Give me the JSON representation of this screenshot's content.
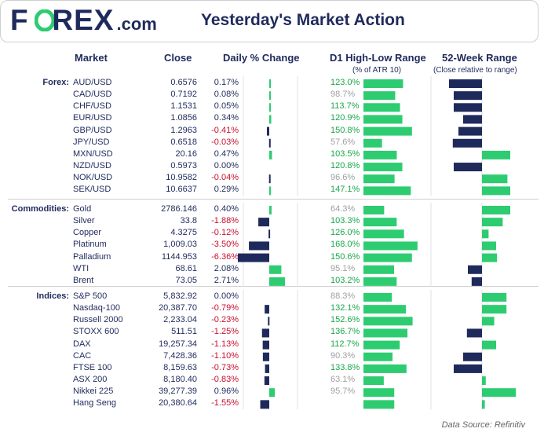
{
  "header": {
    "logo_text": "F",
    "logo_o": "O",
    "logo_rest": "REX",
    "logo_domain": ".com",
    "title": "Yesterday's Market Action"
  },
  "columns": {
    "market": "Market",
    "close": "Close",
    "daily": "Daily % Change",
    "range": "D1 High-Low Range",
    "range_sub": "(% of ATR 10)",
    "week52": "52-Week Range",
    "week52_sub": "(Close relative to range)"
  },
  "colors": {
    "navy": "#1f2a5c",
    "green": "#2ecc71",
    "neg_text": "#c8102e",
    "dim_text": "#a0a0a0",
    "range_text": "#1aa64a"
  },
  "footer": "Data Source: Refinitiv",
  "chart_data": {
    "type": "table",
    "sections": [
      {
        "label": "Forex:",
        "rows": [
          {
            "market": "AUD/USD",
            "close": "0.6576",
            "daily": "0.17%",
            "daily_v": 0.17,
            "range": "123.0%",
            "range_v": 123.0,
            "week52": 0.7
          },
          {
            "market": "CAD/USD",
            "close": "0.7192",
            "daily": "0.08%",
            "daily_v": 0.08,
            "range": "98.7%",
            "range_v": 98.7,
            "week52": 0.6
          },
          {
            "market": "CHF/USD",
            "close": "1.1531",
            "daily": "0.05%",
            "daily_v": 0.05,
            "range": "113.7%",
            "range_v": 113.7,
            "week52": 0.6
          },
          {
            "market": "EUR/USD",
            "close": "1.0856",
            "daily": "0.34%",
            "daily_v": 0.34,
            "range": "120.9%",
            "range_v": 120.9,
            "week52": 0.4
          },
          {
            "market": "GBP/USD",
            "close": "1.2963",
            "daily": "-0.41%",
            "daily_v": -0.41,
            "range": "150.8%",
            "range_v": 150.8,
            "week52": 0.5
          },
          {
            "market": "JPY/USD",
            "close": "0.6518",
            "daily": "-0.03%",
            "daily_v": -0.03,
            "range": "57.6%",
            "range_v": 57.6,
            "week52": 0.62
          },
          {
            "market": "MXN/USD",
            "close": "20.16",
            "daily": "0.47%",
            "daily_v": 0.47,
            "range": "103.5%",
            "range_v": 103.5,
            "week52": -0.6
          },
          {
            "market": "NZD/USD",
            "close": "0.5973",
            "daily": "0.00%",
            "daily_v": 0.0,
            "range": "120.8%",
            "range_v": 120.8,
            "week52": 0.6
          },
          {
            "market": "NOK/USD",
            "close": "10.9582",
            "daily": "-0.04%",
            "daily_v": -0.04,
            "range": "96.6%",
            "range_v": 96.6,
            "week52": -0.54
          },
          {
            "market": "SEK/USD",
            "close": "10.6637",
            "daily": "0.29%",
            "daily_v": 0.29,
            "range": "147.1%",
            "range_v": 147.1,
            "week52": -0.6
          }
        ]
      },
      {
        "label": "Commodities:",
        "rows": [
          {
            "market": "Gold",
            "close": "2786.146",
            "daily": "0.40%",
            "daily_v": 0.4,
            "range": "64.3%",
            "range_v": 64.3,
            "week52": -0.6
          },
          {
            "market": "Silver",
            "close": "33.8",
            "daily": "-1.88%",
            "daily_v": -1.88,
            "range": "103.3%",
            "range_v": 103.3,
            "week52": -0.44
          },
          {
            "market": "Copper",
            "close": "4.3275",
            "daily": "-0.12%",
            "daily_v": -0.12,
            "range": "126.0%",
            "range_v": 126.0,
            "week52": -0.14
          },
          {
            "market": "Platinum",
            "close": "1,009.03",
            "daily": "-3.50%",
            "daily_v": -3.5,
            "range": "168.0%",
            "range_v": 168.0,
            "week52": -0.3
          },
          {
            "market": "Palladium",
            "close": "1144.953",
            "daily": "-6.36%",
            "daily_v": -6.36,
            "range": "150.6%",
            "range_v": 150.6,
            "week52": -0.32
          },
          {
            "market": "WTI",
            "close": "68.61",
            "daily": "2.08%",
            "daily_v": 2.08,
            "range": "95.1%",
            "range_v": 95.1,
            "week52": 0.3
          },
          {
            "market": "Brent",
            "close": "73.05",
            "daily": "2.71%",
            "daily_v": 2.71,
            "range": "103.2%",
            "range_v": 103.2,
            "week52": 0.22
          }
        ]
      },
      {
        "label": "Indices:",
        "rows": [
          {
            "market": "S&P 500",
            "close": "5,832.92",
            "daily": "0.00%",
            "daily_v": 0.0,
            "range": "88.3%",
            "range_v": 88.3,
            "week52": -0.52
          },
          {
            "market": "Nasdaq-100",
            "close": "20,387.70",
            "daily": "-0.79%",
            "daily_v": -0.79,
            "range": "132.1%",
            "range_v": 132.1,
            "week52": -0.52
          },
          {
            "market": "Russell 2000",
            "close": "2,233.04",
            "daily": "-0.23%",
            "daily_v": -0.23,
            "range": "152.6%",
            "range_v": 152.6,
            "week52": -0.26
          },
          {
            "market": "STOXX 600",
            "close": "511.51",
            "daily": "-1.25%",
            "daily_v": -1.25,
            "range": "136.7%",
            "range_v": 136.7,
            "week52": 0.32
          },
          {
            "market": "DAX",
            "close": "19,257.34",
            "daily": "-1.13%",
            "daily_v": -1.13,
            "range": "112.7%",
            "range_v": 112.7,
            "week52": -0.3
          },
          {
            "market": "CAC",
            "close": "7,428.36",
            "daily": "-1.10%",
            "daily_v": -1.1,
            "range": "90.3%",
            "range_v": 90.3,
            "week52": 0.4
          },
          {
            "market": "FTSE 100",
            "close": "8,159.63",
            "daily": "-0.73%",
            "daily_v": -0.73,
            "range": "133.8%",
            "range_v": 133.8,
            "week52": 0.6
          },
          {
            "market": "ASX 200",
            "close": "8,180.40",
            "daily": "-0.83%",
            "daily_v": -0.83,
            "range": "63.1%",
            "range_v": 63.1,
            "week52": -0.08
          },
          {
            "market": "Nikkei 225",
            "close": "39,277.39",
            "daily": "0.96%",
            "daily_v": 0.96,
            "range": "95.7%",
            "range_v": 95.7,
            "week52": -0.72
          },
          {
            "market": "Hang Seng",
            "close": "20,380.64",
            "daily": "-1.55%",
            "daily_v": -1.55,
            "range": "",
            "range_v": 95.7,
            "week52": -0.06
          }
        ]
      }
    ]
  }
}
